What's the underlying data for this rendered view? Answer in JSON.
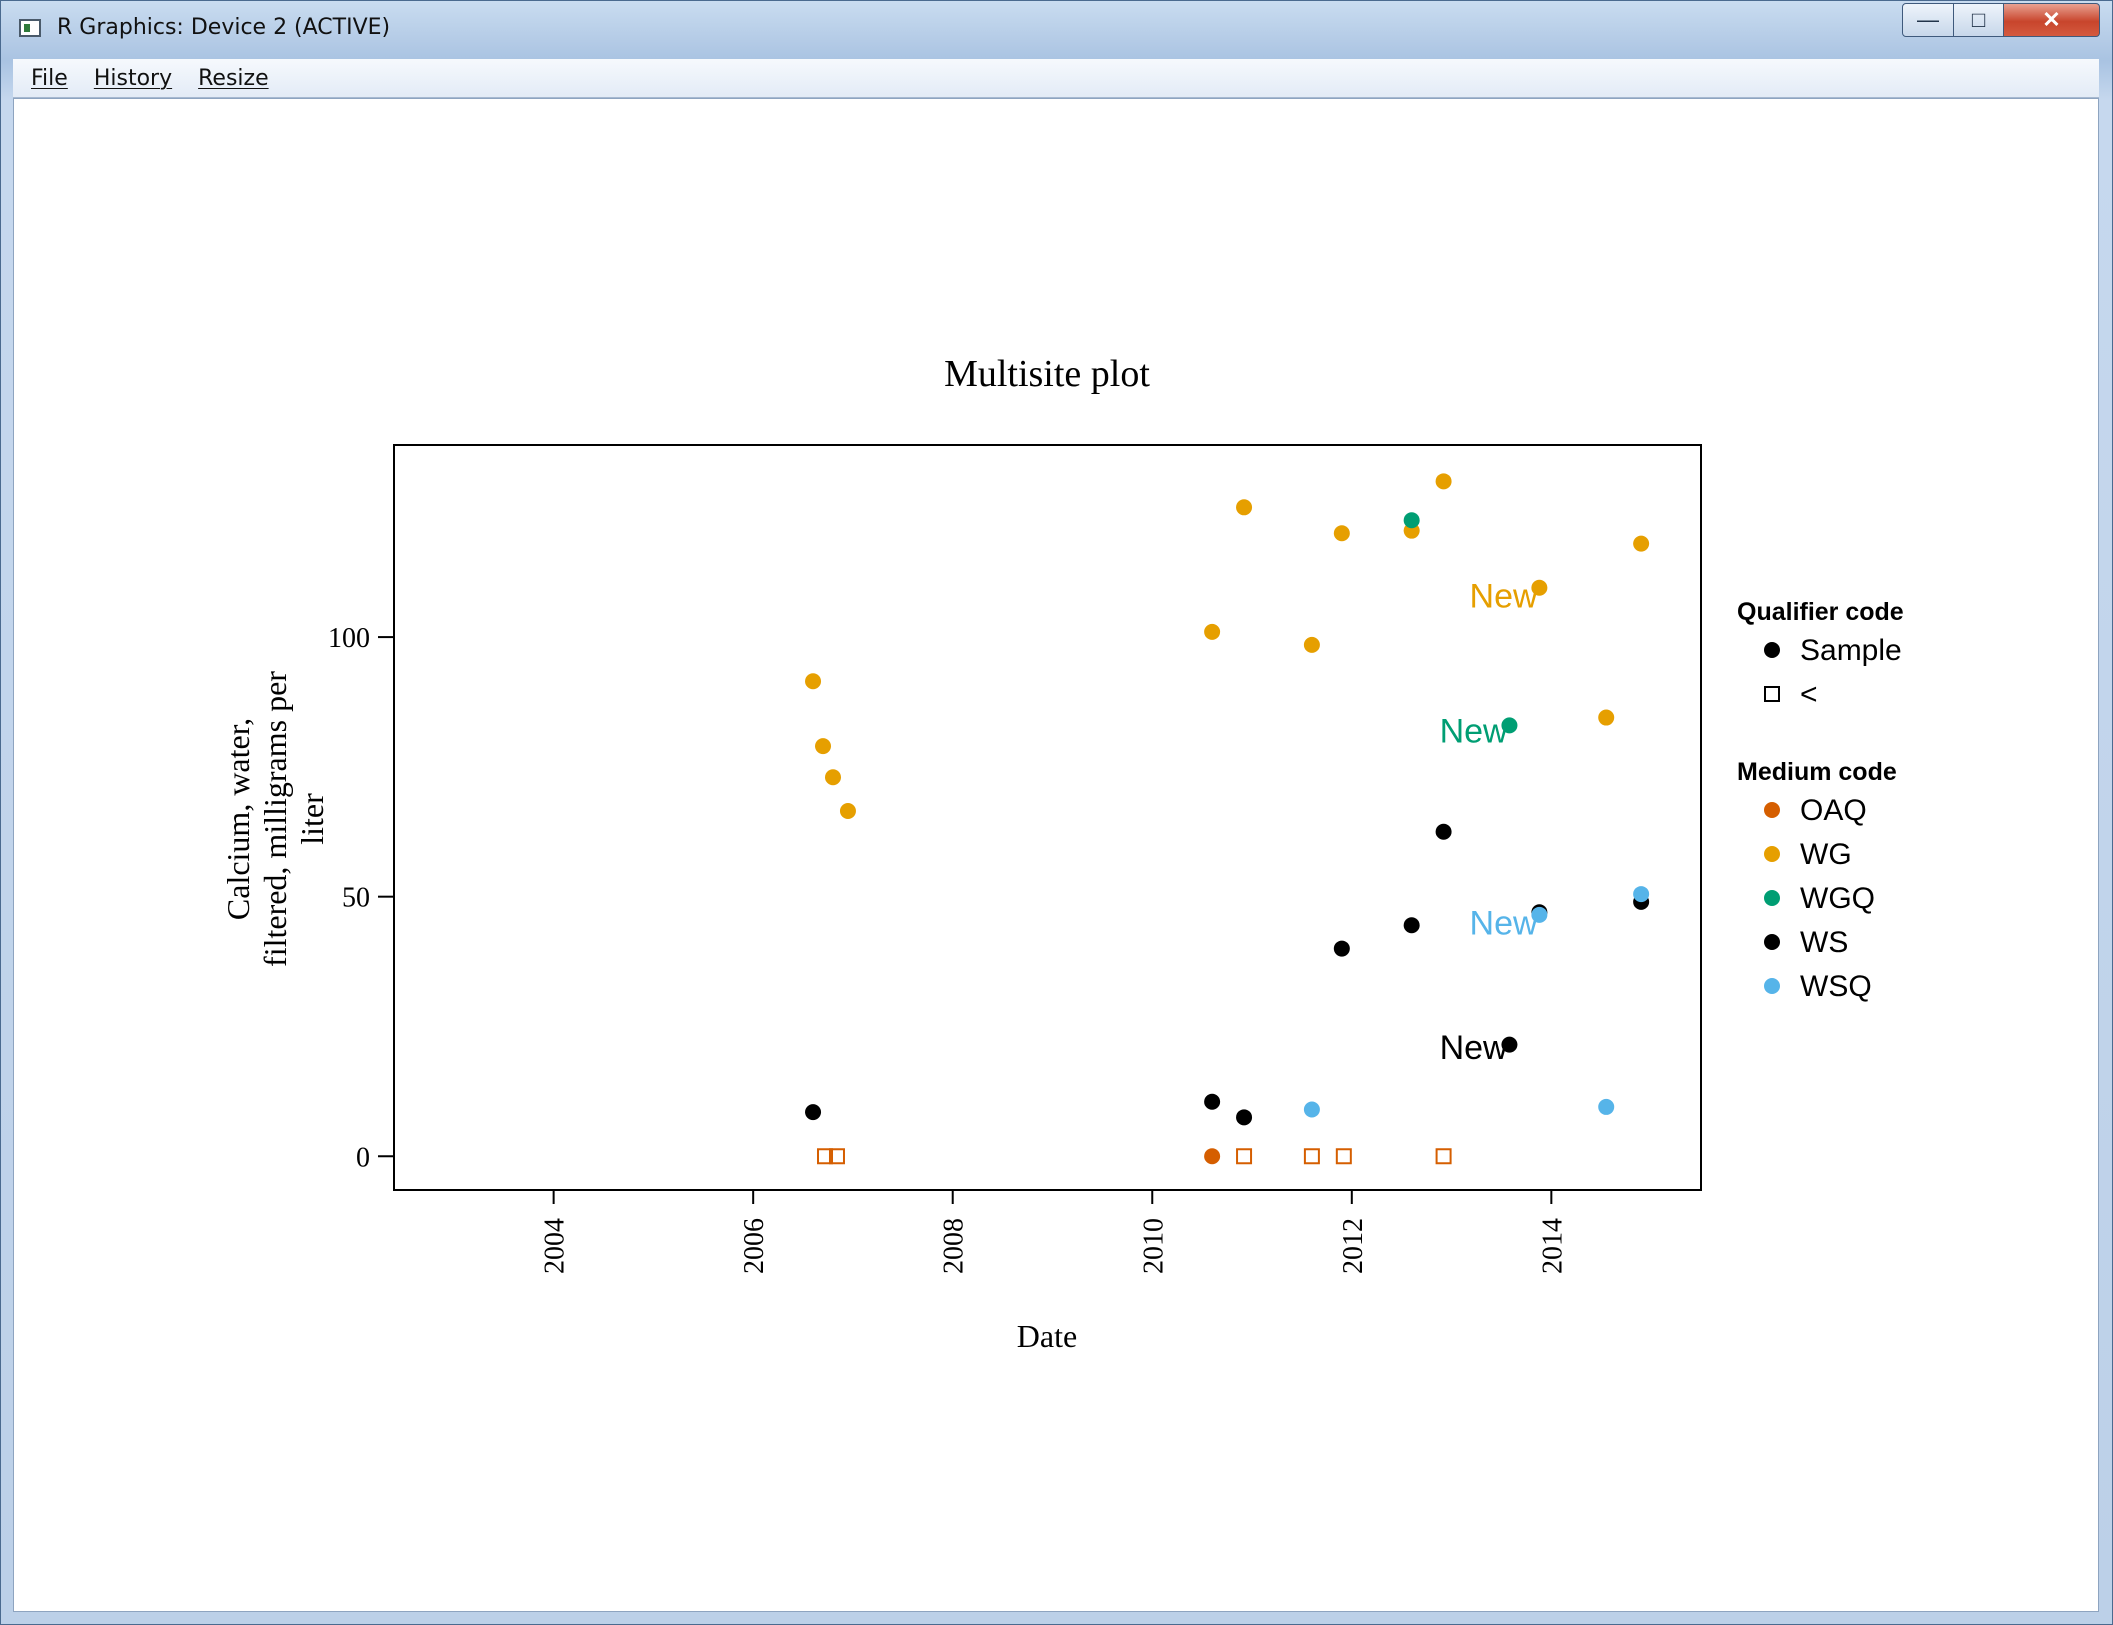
{
  "window": {
    "title": "R Graphics: Device 2 (ACTIVE)",
    "controls": {
      "minimize": "—",
      "maximize": "□",
      "close": "✕"
    }
  },
  "menu": [
    "File",
    "History",
    "Resize"
  ],
  "icons": {
    "app": "r-graphics-icon",
    "minimize": "minimize-icon",
    "maximize": "maximize-icon",
    "close": "close-icon"
  },
  "chart_data": {
    "type": "scatter",
    "title": "Multisite plot",
    "xlabel": "Date",
    "ylabel": [
      "Calcium, water,",
      "filtered, milligrams per",
      "liter"
    ],
    "x_ticks": [
      2004,
      2006,
      2008,
      2010,
      2012,
      2014
    ],
    "y_ticks": [
      0,
      50,
      100
    ],
    "xlim": [
      2002.4,
      2015.5
    ],
    "ylim": [
      -6.5,
      137
    ],
    "legend_placement": "right",
    "legends": [
      {
        "title": "Qualifier code",
        "items": [
          {
            "label": "Sample",
            "shape": "dot",
            "color": "#000000"
          },
          {
            "label": "<",
            "shape": "square",
            "color": "#000000"
          }
        ]
      },
      {
        "title": "Medium code",
        "items": [
          {
            "label": "OAQ",
            "shape": "dot",
            "color": "#D55E00"
          },
          {
            "label": "WG",
            "shape": "dot",
            "color": "#E69F00"
          },
          {
            "label": "WGQ",
            "shape": "dot",
            "color": "#009E73"
          },
          {
            "label": "WS",
            "shape": "dot",
            "color": "#000000"
          },
          {
            "label": "WSQ",
            "shape": "dot",
            "color": "#56B4E9"
          }
        ]
      }
    ],
    "series": [
      {
        "name": "WG",
        "color": "#E69F00",
        "shape": "dot",
        "points": [
          [
            2006.6,
            91.5
          ],
          [
            2006.7,
            79
          ],
          [
            2006.8,
            73
          ],
          [
            2006.95,
            66.5
          ],
          [
            2010.6,
            101
          ],
          [
            2010.92,
            125
          ],
          [
            2011.6,
            98.5
          ],
          [
            2011.9,
            120
          ],
          [
            2012.6,
            120.5
          ],
          [
            2012.92,
            130
          ],
          [
            2013.88,
            109.5
          ],
          [
            2014.55,
            84.5
          ],
          [
            2014.9,
            118
          ]
        ]
      },
      {
        "name": "WGQ",
        "color": "#009E73",
        "shape": "dot",
        "points": [
          [
            2012.6,
            122.5
          ],
          [
            2013.58,
            83
          ]
        ]
      },
      {
        "name": "WS",
        "color": "#000000",
        "shape": "dot",
        "points": [
          [
            2006.6,
            8.5
          ],
          [
            2010.6,
            10.5
          ],
          [
            2010.92,
            7.5
          ],
          [
            2011.9,
            40
          ],
          [
            2012.6,
            44.5
          ],
          [
            2012.92,
            62.5
          ],
          [
            2013.58,
            21.5
          ],
          [
            2013.88,
            47
          ],
          [
            2014.9,
            49
          ]
        ]
      },
      {
        "name": "WSQ",
        "color": "#56B4E9",
        "shape": "dot",
        "points": [
          [
            2011.6,
            9
          ],
          [
            2013.88,
            46.5
          ],
          [
            2014.55,
            9.5
          ],
          [
            2014.9,
            50.5
          ]
        ]
      },
      {
        "name": "OAQ",
        "color": "#D55E00",
        "shape": "dot",
        "points": [
          [
            2010.6,
            0
          ]
        ]
      },
      {
        "name": "<",
        "color": "#D55E00",
        "shape": "square",
        "points": [
          [
            2006.72,
            0
          ],
          [
            2006.84,
            0
          ],
          [
            2010.92,
            0
          ],
          [
            2011.6,
            0
          ],
          [
            2011.92,
            0
          ],
          [
            2012.92,
            0
          ]
        ]
      }
    ],
    "annotations": [
      {
        "text": "New",
        "x": 2013.18,
        "y": 108,
        "color": "#E69F00"
      },
      {
        "text": "New",
        "x": 2012.88,
        "y": 82,
        "color": "#009E73"
      },
      {
        "text": "New",
        "x": 2013.18,
        "y": 45,
        "color": "#56B4E9"
      },
      {
        "text": "New",
        "x": 2012.88,
        "y": 21,
        "color": "#000000"
      }
    ]
  }
}
